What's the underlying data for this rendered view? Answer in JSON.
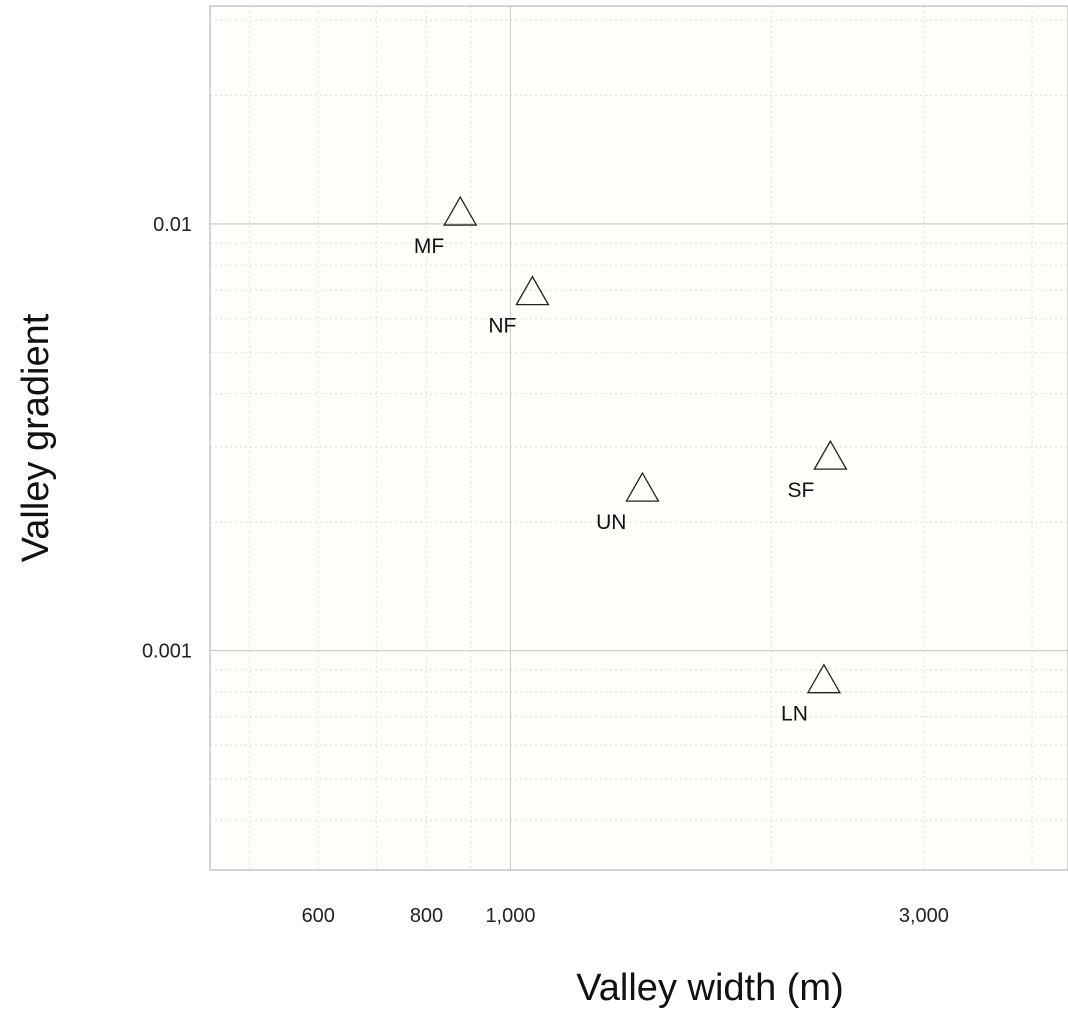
{
  "chart_data": {
    "type": "scatter",
    "title": "",
    "xlabel": "Valley width (m)",
    "ylabel": "Valley gradient",
    "x_scale": "log",
    "y_scale": "log",
    "xlim": [
      450,
      4400
    ],
    "ylim": [
      0.000306,
      0.0324
    ],
    "grid": true,
    "x_ticks": [
      {
        "value": 600,
        "label": "600"
      },
      {
        "value": 800,
        "label": "800"
      },
      {
        "value": 1000,
        "label": "1,000"
      },
      {
        "value": 3000,
        "label": "3,000"
      }
    ],
    "y_ticks": [
      {
        "value": 0.01,
        "label": "0.01"
      },
      {
        "value": 0.001,
        "label": "0.001"
      }
    ],
    "x_grid_major": [
      1000
    ],
    "x_grid_minor": [
      500,
      600,
      700,
      800,
      900,
      2000,
      3000,
      4000
    ],
    "y_grid_major": [
      0.01,
      0.001
    ],
    "y_grid_minor": [
      0.0004,
      0.0005,
      0.0006,
      0.0007,
      0.0008,
      0.0009,
      0.002,
      0.003,
      0.004,
      0.005,
      0.006,
      0.007,
      0.008,
      0.009,
      0.02,
      0.03
    ],
    "marker": "open-triangle",
    "points": [
      {
        "label": "MF",
        "x": 875,
        "y": 0.0106
      },
      {
        "label": "NF",
        "x": 1060,
        "y": 0.0069
      },
      {
        "label": "UN",
        "x": 1420,
        "y": 0.00239
      },
      {
        "label": "SF",
        "x": 2340,
        "y": 0.00284
      },
      {
        "label": "LN",
        "x": 2300,
        "y": 0.00085
      }
    ]
  }
}
